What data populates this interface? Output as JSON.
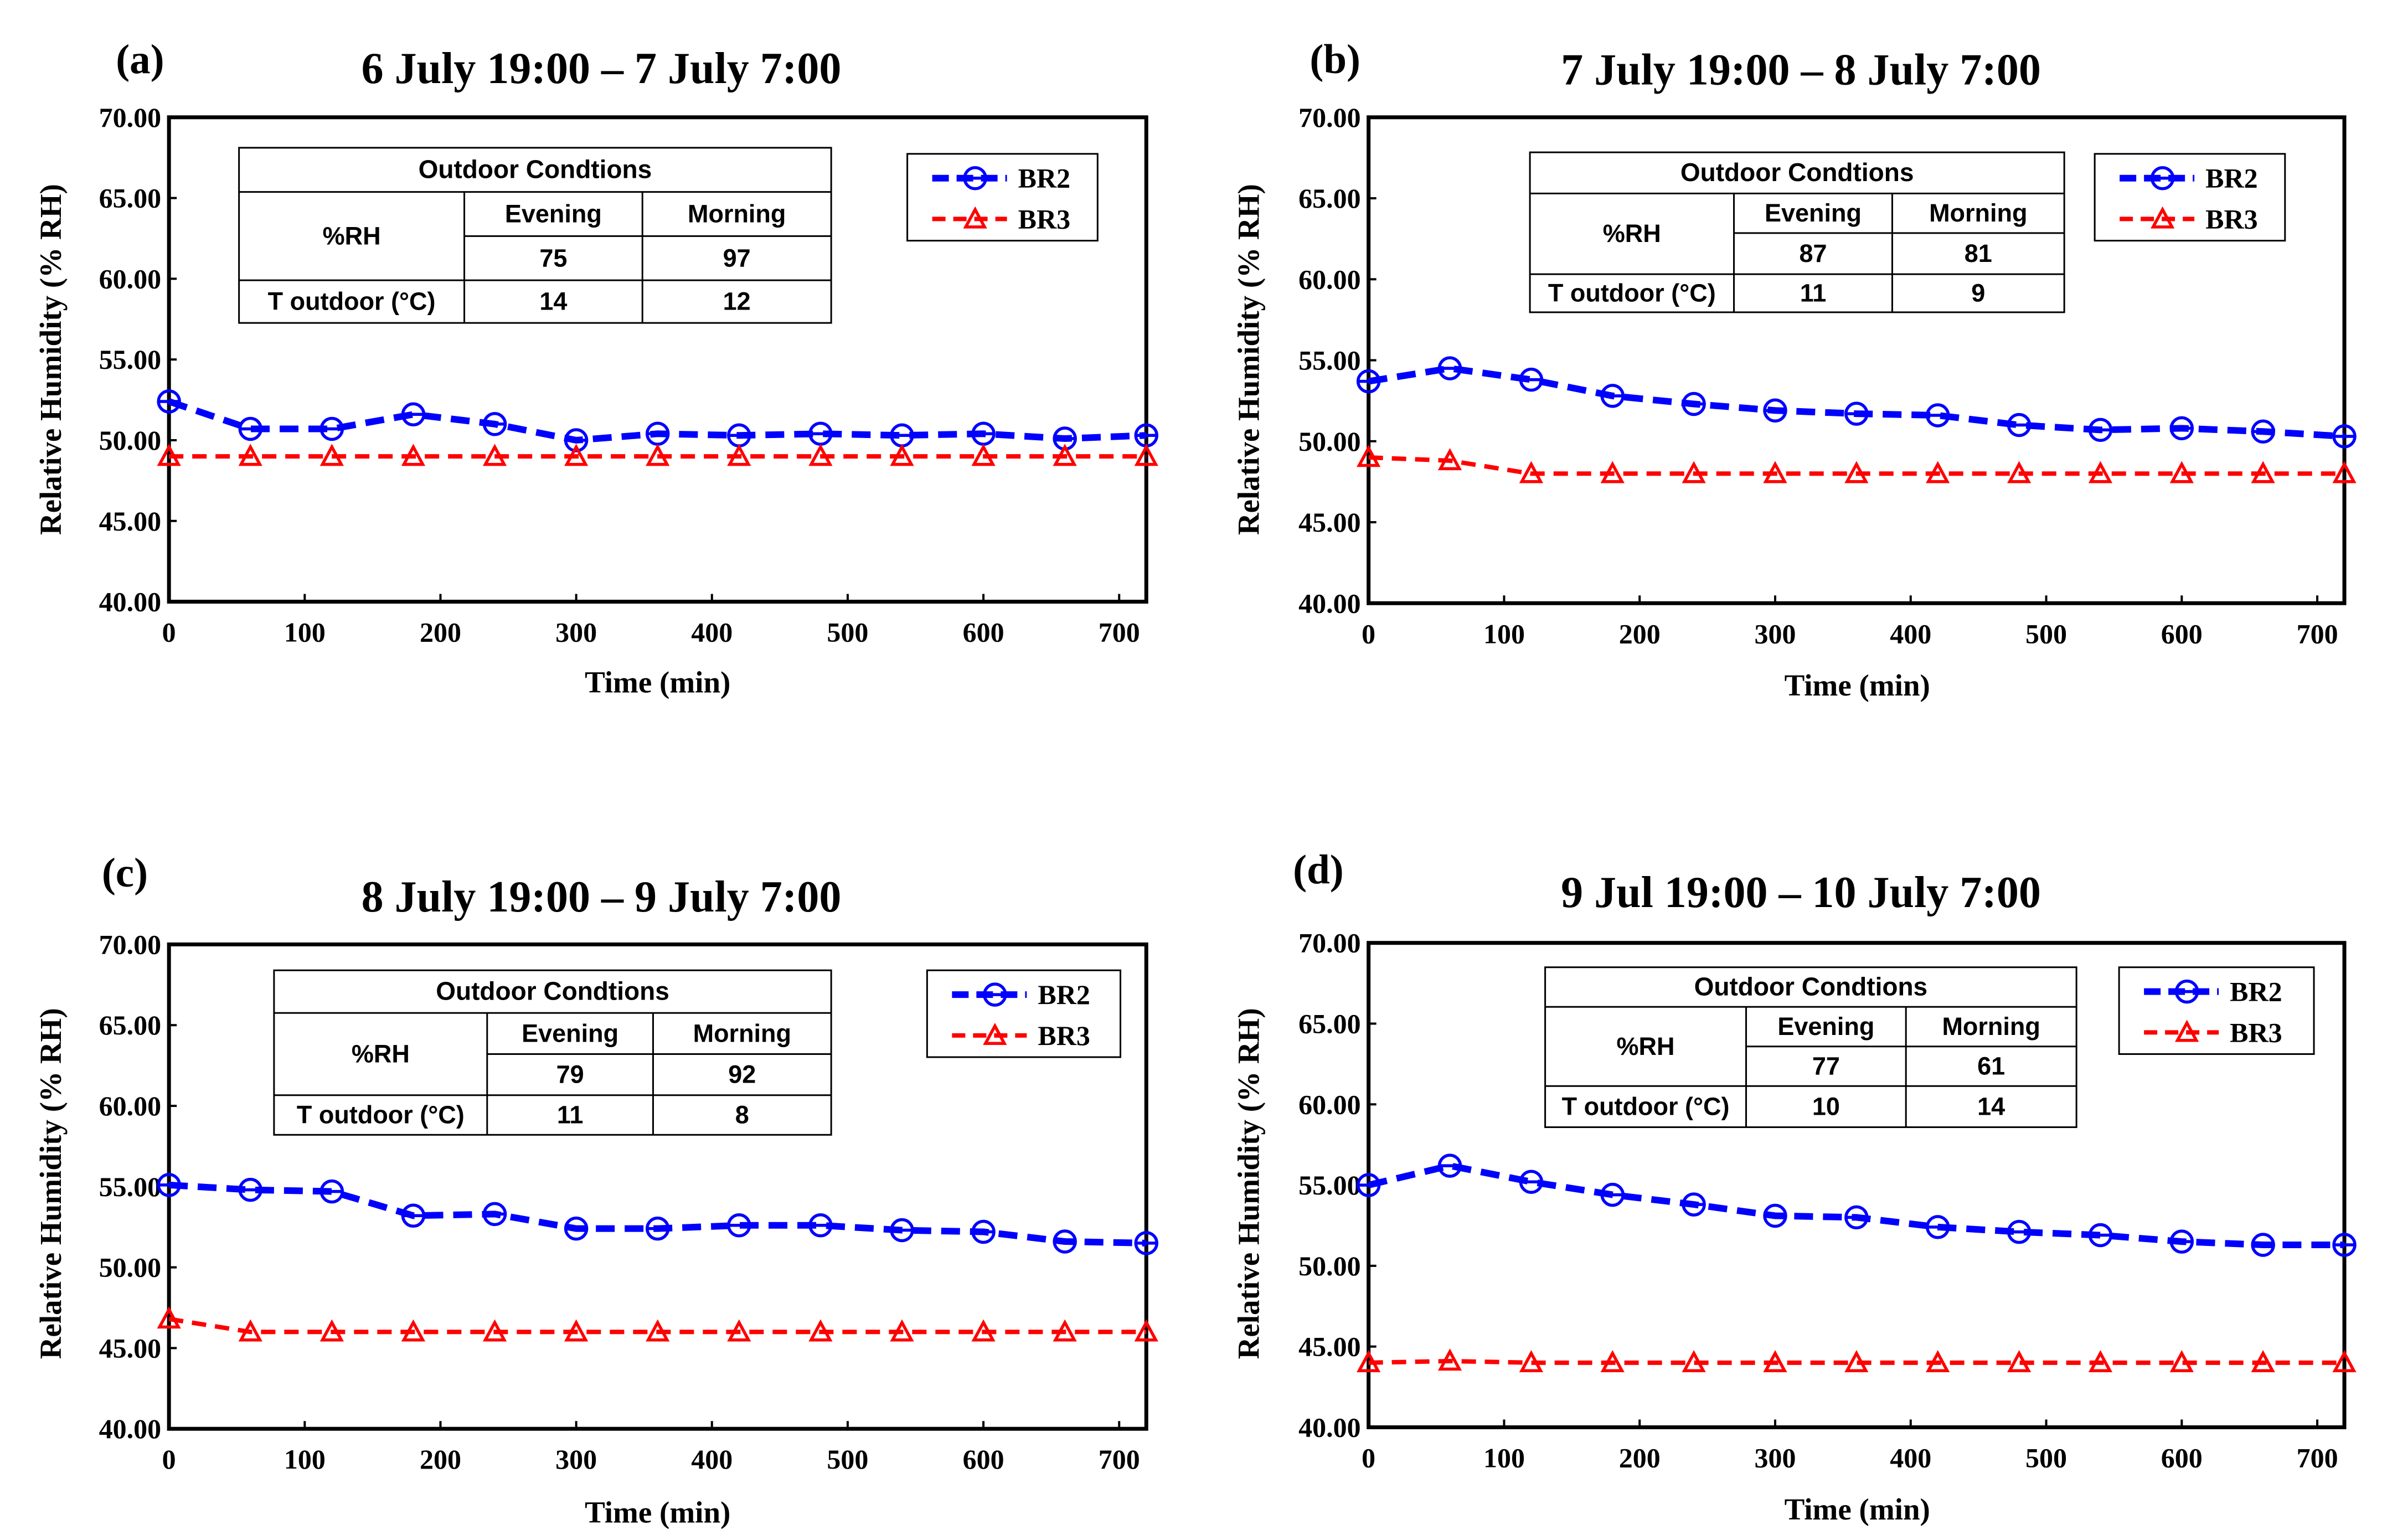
{
  "chart_data": [
    {
      "type": "line",
      "panel_label": "(a)",
      "title": "6 July 19:00 – 7 July 7:00",
      "xlabel": "Time (min)",
      "ylabel": "Relative Humidity (% RH)",
      "xlim": [
        0,
        720
      ],
      "ylim": [
        40,
        70
      ],
      "xticks": [
        "0",
        "100",
        "200",
        "300",
        "400",
        "500",
        "600",
        "700"
      ],
      "yticks": [
        "40.00",
        "45.00",
        "50.00",
        "55.00",
        "60.00",
        "65.00",
        "70.00"
      ],
      "x": [
        0,
        60,
        120,
        180,
        240,
        300,
        360,
        420,
        480,
        540,
        600,
        660,
        720
      ],
      "series": [
        {
          "name": "BR2",
          "color": "#0000ff",
          "marker": "circle",
          "values": [
            52.4,
            50.7,
            50.7,
            51.6,
            51.0,
            50.0,
            50.4,
            50.3,
            50.4,
            50.3,
            50.4,
            50.1,
            50.3
          ]
        },
        {
          "name": "BR3",
          "color": "#ff0000",
          "marker": "triangle",
          "values": [
            49.0,
            49.0,
            49.0,
            49.0,
            49.0,
            49.0,
            49.0,
            49.0,
            49.0,
            49.0,
            49.0,
            49.0,
            49.0
          ]
        }
      ],
      "legend": "top-right",
      "table": {
        "title": "Outdoor Condtions",
        "col_evening": "Evening",
        "col_morning": "Morning",
        "row_rh": "%RH",
        "row_t": "T outdoor (°C)",
        "rh_evening": "75",
        "rh_morning": "97",
        "t_evening": "14",
        "t_morning": "12"
      }
    },
    {
      "type": "line",
      "panel_label": "(b)",
      "title": "7 July 19:00 – 8 July 7:00",
      "xlabel": "Time (min)",
      "ylabel": "Relative Humidity (% RH)",
      "xlim": [
        0,
        720
      ],
      "ylim": [
        40,
        70
      ],
      "xticks": [
        "0",
        "100",
        "200",
        "300",
        "400",
        "500",
        "600",
        "700"
      ],
      "yticks": [
        "40.00",
        "45.00",
        "50.00",
        "55.00",
        "60.00",
        "65.00",
        "70.00"
      ],
      "x": [
        0,
        60,
        120,
        180,
        240,
        300,
        360,
        420,
        480,
        540,
        600,
        660,
        720
      ],
      "series": [
        {
          "name": "BR2",
          "color": "#0000ff",
          "marker": "circle",
          "values": [
            53.7,
            54.5,
            53.8,
            52.8,
            52.3,
            51.9,
            51.7,
            51.6,
            51.0,
            50.7,
            50.8,
            50.6,
            50.3
          ]
        },
        {
          "name": "BR3",
          "color": "#ff0000",
          "marker": "triangle",
          "values": [
            49.0,
            48.8,
            48.0,
            48.0,
            48.0,
            48.0,
            48.0,
            48.0,
            48.0,
            48.0,
            48.0,
            48.0,
            48.0
          ]
        }
      ],
      "legend": "top-right",
      "table": {
        "title": "Outdoor Condtions",
        "col_evening": "Evening",
        "col_morning": "Morning",
        "row_rh": "%RH",
        "row_t": "T outdoor (°C)",
        "rh_evening": "87",
        "rh_morning": "81",
        "t_evening": "11",
        "t_morning": "9"
      }
    },
    {
      "type": "line",
      "panel_label": "(c)",
      "title": "8 July 19:00 – 9 July 7:00",
      "xlabel": "Time (min)",
      "ylabel": "Relative Humidity (% RH)",
      "xlim": [
        0,
        720
      ],
      "ylim": [
        40,
        70
      ],
      "xticks": [
        "0",
        "100",
        "200",
        "300",
        "400",
        "500",
        "600",
        "700"
      ],
      "yticks": [
        "40.00",
        "45.00",
        "50.00",
        "55.00",
        "60.00",
        "65.00",
        "70.00"
      ],
      "x": [
        0,
        60,
        120,
        180,
        240,
        300,
        360,
        420,
        480,
        540,
        600,
        660,
        720
      ],
      "series": [
        {
          "name": "BR2",
          "color": "#0000ff",
          "marker": "circle",
          "values": [
            55.1,
            54.8,
            54.7,
            53.2,
            53.3,
            52.4,
            52.4,
            52.6,
            52.6,
            52.3,
            52.2,
            51.6,
            51.5
          ]
        },
        {
          "name": "BR3",
          "color": "#ff0000",
          "marker": "triangle",
          "values": [
            46.8,
            46.0,
            46.0,
            46.0,
            46.0,
            46.0,
            46.0,
            46.0,
            46.0,
            46.0,
            46.0,
            46.0,
            46.0
          ]
        }
      ],
      "legend": "top-right",
      "table": {
        "title": "Outdoor Condtions",
        "col_evening": "Evening",
        "col_morning": "Morning",
        "row_rh": "%RH",
        "row_t": "T outdoor (°C)",
        "rh_evening": "79",
        "rh_morning": "92",
        "t_evening": "11",
        "t_morning": "8"
      }
    },
    {
      "type": "line",
      "panel_label": "(d)",
      "title": "9 Jul 19:00 – 10 July 7:00",
      "xlabel": "Time (min)",
      "ylabel": "Relative Humidity (% RH)",
      "xlim": [
        0,
        720
      ],
      "ylim": [
        40,
        70
      ],
      "xticks": [
        "0",
        "100",
        "200",
        "300",
        "400",
        "500",
        "600",
        "700"
      ],
      "yticks": [
        "40.00",
        "45.00",
        "50.00",
        "55.00",
        "60.00",
        "65.00",
        "70.00"
      ],
      "x": [
        0,
        60,
        120,
        180,
        240,
        300,
        360,
        420,
        480,
        540,
        600,
        660,
        720
      ],
      "series": [
        {
          "name": "BR2",
          "color": "#0000ff",
          "marker": "circle",
          "values": [
            55.0,
            56.2,
            55.2,
            54.4,
            53.8,
            53.1,
            53.0,
            52.4,
            52.1,
            51.9,
            51.5,
            51.3,
            51.3
          ]
        },
        {
          "name": "BR3",
          "color": "#ff0000",
          "marker": "triangle",
          "values": [
            44.0,
            44.1,
            44.0,
            44.0,
            44.0,
            44.0,
            44.0,
            44.0,
            44.0,
            44.0,
            44.0,
            44.0,
            44.0
          ]
        }
      ],
      "legend": "top-right",
      "table": {
        "title": "Outdoor Condtions",
        "col_evening": "Evening",
        "col_morning": "Morning",
        "row_rh": "%RH",
        "row_t": "T outdoor (°C)",
        "rh_evening": "77",
        "rh_morning": "61",
        "t_evening": "10",
        "t_morning": "14"
      }
    }
  ]
}
